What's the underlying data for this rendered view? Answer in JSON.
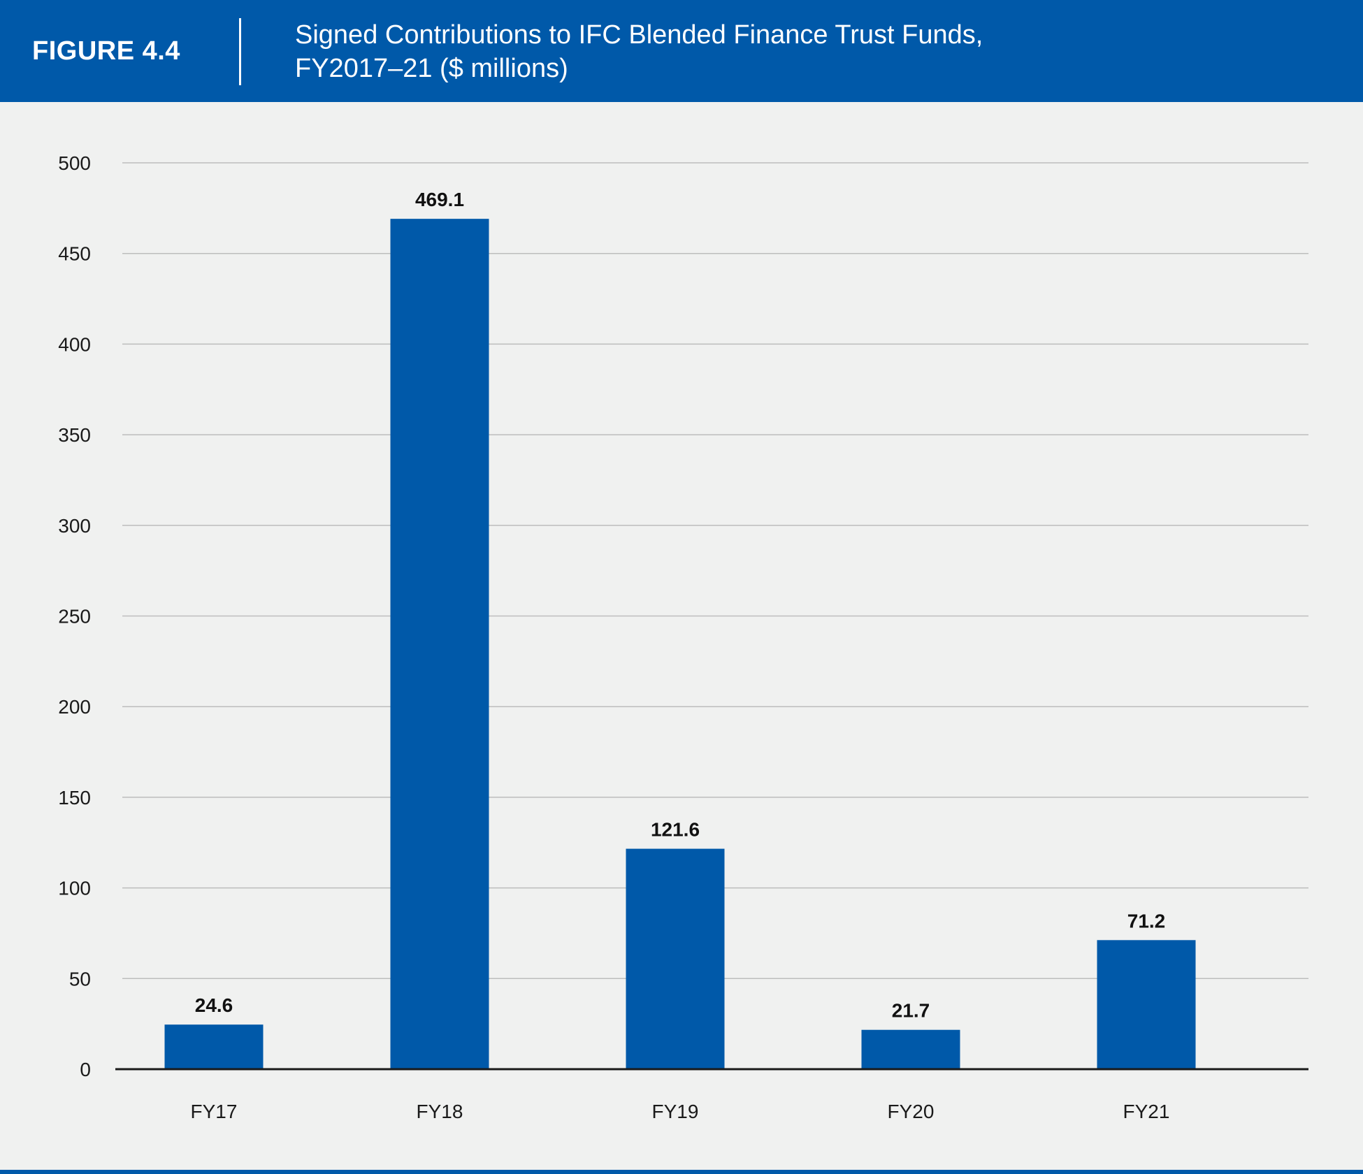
{
  "header": {
    "figure_label": "FIGURE 4.4",
    "title_line1": "Signed Contributions to IFC Blended Finance Trust Funds,",
    "title_line2": "FY2017–21 ($ millions)"
  },
  "colors": {
    "brand_blue": "#0059a9",
    "bar": "#0059a9",
    "background": "#f0f1f0",
    "gridline": "#bdbdbd",
    "baseline": "#1a1a1a"
  },
  "chart_data": {
    "type": "bar",
    "title": "Signed Contributions to IFC Blended Finance Trust Funds, FY2017–21 ($ millions)",
    "categories": [
      "FY17",
      "FY18",
      "FY19",
      "FY20",
      "FY21"
    ],
    "values": [
      24.6,
      469.1,
      121.6,
      21.7,
      71.2
    ],
    "data_labels": [
      "24.6",
      "469.1",
      "121.6",
      "21.7",
      "71.2"
    ],
    "xlabel": "",
    "ylabel": "",
    "ylim": [
      0,
      500
    ],
    "yticks": [
      0,
      50,
      100,
      150,
      200,
      250,
      300,
      350,
      400,
      450,
      500
    ],
    "grid": true,
    "legend": "none"
  }
}
